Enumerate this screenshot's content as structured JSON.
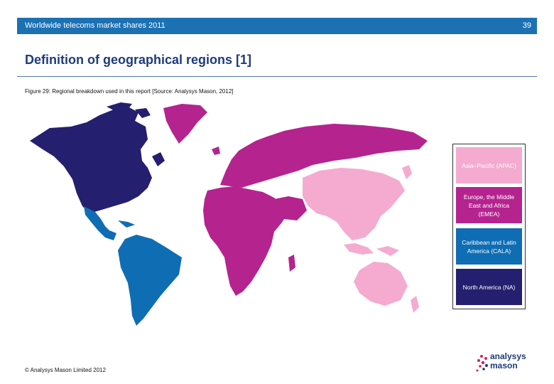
{
  "header": {
    "title": "Worldwide telecoms market shares 2011",
    "page_number": "39"
  },
  "page_title": "Definition of geographical regions [1]",
  "caption": "Figure 29: Regional breakdown used in this report [Source: Analysys Mason, 2012]",
  "legend": {
    "items": [
      {
        "label": "Asia–Pacific (APAC)",
        "color": "#f4abcf"
      },
      {
        "label": "Europe, the Middle East and Africa (EMEA)",
        "color": "#b5238f"
      },
      {
        "label": "Caribbean and Latin America (CALA)",
        "color": "#0f6db4"
      },
      {
        "label": "North America (NA)",
        "color": "#251f6f"
      }
    ]
  },
  "footer": "© Analysys Mason Limited 2012",
  "logo": {
    "line1": "analysys",
    "line2": "mason",
    "icon": "dot-cluster-icon",
    "color": "#1f3b7a",
    "accent": "#d0205f"
  }
}
